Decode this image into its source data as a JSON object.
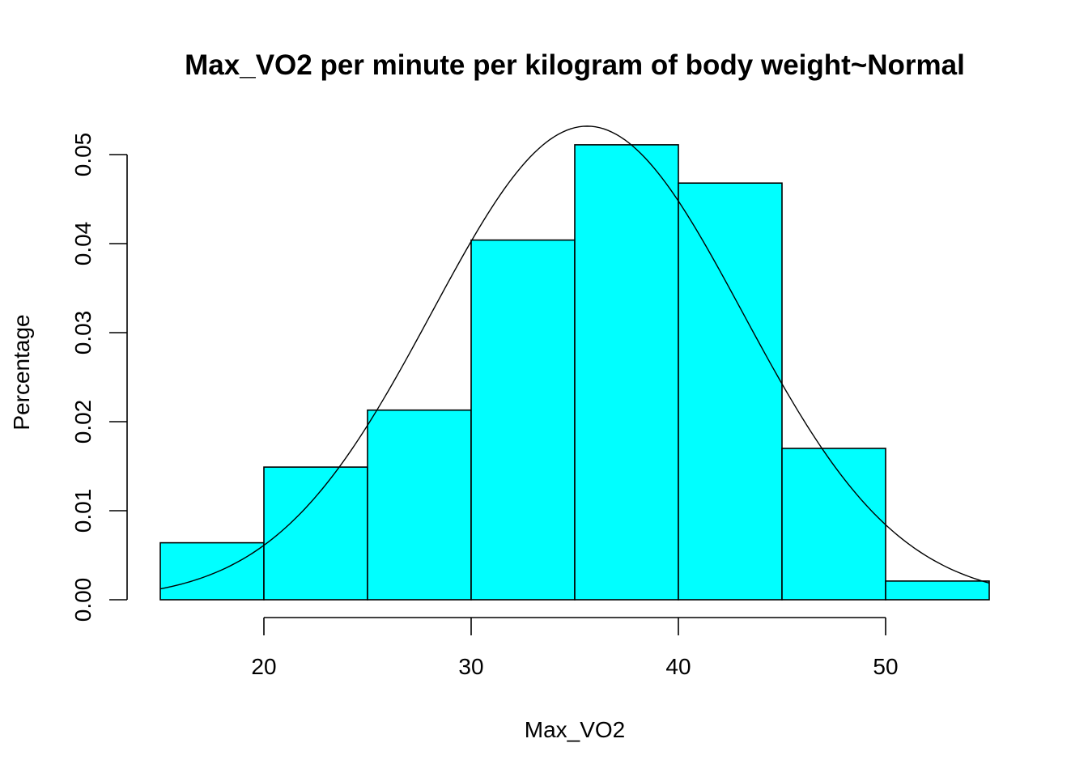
{
  "chart_data": {
    "type": "bar",
    "title": "Max_VO2 per minute per kilogram of body weight~Normal",
    "xlabel": "Max_VO2",
    "ylabel": "Percentage",
    "bin_edges": [
      15,
      20,
      25,
      30,
      35,
      40,
      45,
      50,
      55
    ],
    "values": [
      0.0064,
      0.0149,
      0.0213,
      0.0404,
      0.0511,
      0.0468,
      0.017,
      0.0021
    ],
    "x_ticks": [
      20,
      30,
      40,
      50
    ],
    "x_tick_labels": [
      "20",
      "30",
      "40",
      "50"
    ],
    "y_ticks": [
      0,
      0.01,
      0.02,
      0.03,
      0.04,
      0.05
    ],
    "y_tick_labels": [
      "0.00",
      "0.01",
      "0.02",
      "0.03",
      "0.04",
      "0.05"
    ],
    "xlim": [
      15,
      55
    ],
    "ylim": [
      0,
      0.05
    ],
    "bar_color": "#00FFFF",
    "normal_curve": {
      "mean": 35.6,
      "sd": 7.5,
      "color": "#000000"
    },
    "grid": false,
    "legend": "none"
  }
}
